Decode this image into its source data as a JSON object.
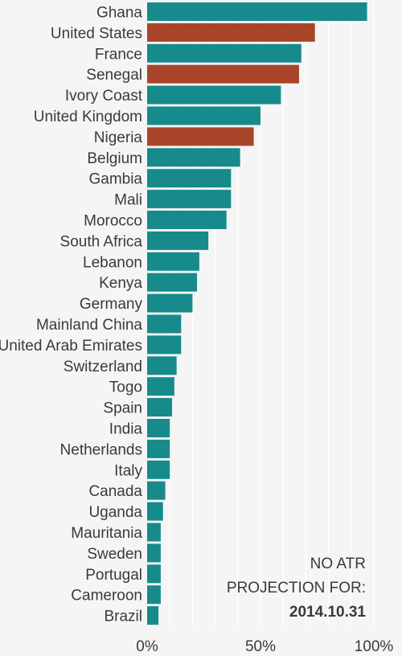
{
  "chart_data": {
    "type": "bar",
    "orientation": "horizontal",
    "categories": [
      "Ghana",
      "United States",
      "France",
      "Senegal",
      "Ivory Coast",
      "United Kingdom",
      "Nigeria",
      "Belgium",
      "Gambia",
      "Mali",
      "Morocco",
      "South Africa",
      "Lebanon",
      "Kenya",
      "Germany",
      "Mainland China",
      "United Arab Emirates",
      "Switzerland",
      "Togo",
      "Spain",
      "India",
      "Netherlands",
      "Italy",
      "Canada",
      "Uganda",
      "Mauritania",
      "Sweden",
      "Portugal",
      "Cameroon",
      "Brazil"
    ],
    "values": [
      97,
      74,
      68,
      67,
      59,
      50,
      47,
      41,
      37,
      37,
      35,
      27,
      23,
      22,
      20,
      15,
      15,
      13,
      12,
      11,
      10,
      10,
      10,
      8,
      7,
      6,
      6,
      6,
      6,
      5
    ],
    "highlighted": [
      "United States",
      "Senegal",
      "Nigeria"
    ],
    "colors": {
      "default": "#178a8c",
      "highlight": "#a84528",
      "grid": "#ffffff",
      "background": "#f5f5f5"
    },
    "xlim": [
      0,
      100
    ],
    "x_ticks": [
      "0%",
      "50%",
      "100%"
    ],
    "x_tick_values": [
      0,
      50,
      100
    ],
    "grid": true,
    "title": "",
    "xlabel": "",
    "ylabel": ""
  },
  "annotation": {
    "line1": "NO ATR",
    "line2": "PROJECTION FOR:",
    "date": "2014.10.31"
  }
}
